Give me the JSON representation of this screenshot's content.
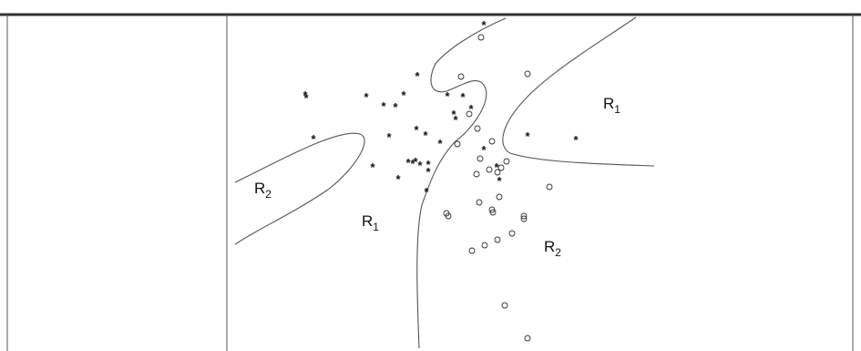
{
  "figure": {
    "regions": [
      {
        "id": "r1-right",
        "main": "R",
        "sub": "1"
      },
      {
        "id": "r2-left",
        "main": "R",
        "sub": "2"
      },
      {
        "id": "r1-center",
        "main": "R",
        "sub": "1"
      },
      {
        "id": "r2-bottom",
        "main": "R",
        "sub": "2"
      }
    ]
  },
  "chart_data": {
    "type": "scatter",
    "series": [
      {
        "marker": "asterisk",
        "points": [
          [
            531,
            27
          ],
          [
            335,
            104
          ],
          [
            336,
            107
          ],
          [
            402,
            106
          ],
          [
            458,
            83
          ],
          [
            421,
            116
          ],
          [
            434,
            117
          ],
          [
            443,
            104
          ],
          [
            491,
            105
          ],
          [
            508,
            106
          ],
          [
            498,
            125
          ],
          [
            500,
            131
          ],
          [
            517,
            119
          ],
          [
            344,
            152
          ],
          [
            427,
            150
          ],
          [
            457,
            142
          ],
          [
            467,
            148
          ],
          [
            483,
            157
          ],
          [
            448,
            178
          ],
          [
            453,
            179
          ],
          [
            456,
            177
          ],
          [
            461,
            181
          ],
          [
            409,
            183
          ],
          [
            470,
            180
          ],
          [
            470,
            188
          ],
          [
            437,
            196
          ],
          [
            468,
            210
          ],
          [
            531,
            164
          ],
          [
            545,
            183
          ],
          [
            548,
            198
          ],
          [
            579,
            149
          ],
          [
            632,
            153
          ]
        ]
      },
      {
        "marker": "circle",
        "points": [
          [
            528,
            41
          ],
          [
            579,
            81
          ],
          [
            506,
            84
          ],
          [
            515,
            125
          ],
          [
            524,
            141
          ],
          [
            502,
            158
          ],
          [
            540,
            155
          ],
          [
            527,
            174
          ],
          [
            523,
            191
          ],
          [
            537,
            186
          ],
          [
            546,
            189
          ],
          [
            550,
            184
          ],
          [
            556,
            177
          ],
          [
            603,
            205
          ],
          [
            548,
            216
          ],
          [
            526,
            222
          ],
          [
            540,
            230
          ],
          [
            541,
            233
          ],
          [
            490,
            234
          ],
          [
            492,
            237
          ],
          [
            575,
            237
          ],
          [
            575,
            240
          ],
          [
            562,
            256
          ],
          [
            546,
            263
          ],
          [
            532,
            269
          ],
          [
            518,
            275
          ],
          [
            554,
            335
          ],
          [
            579,
            371
          ]
        ]
      }
    ]
  }
}
